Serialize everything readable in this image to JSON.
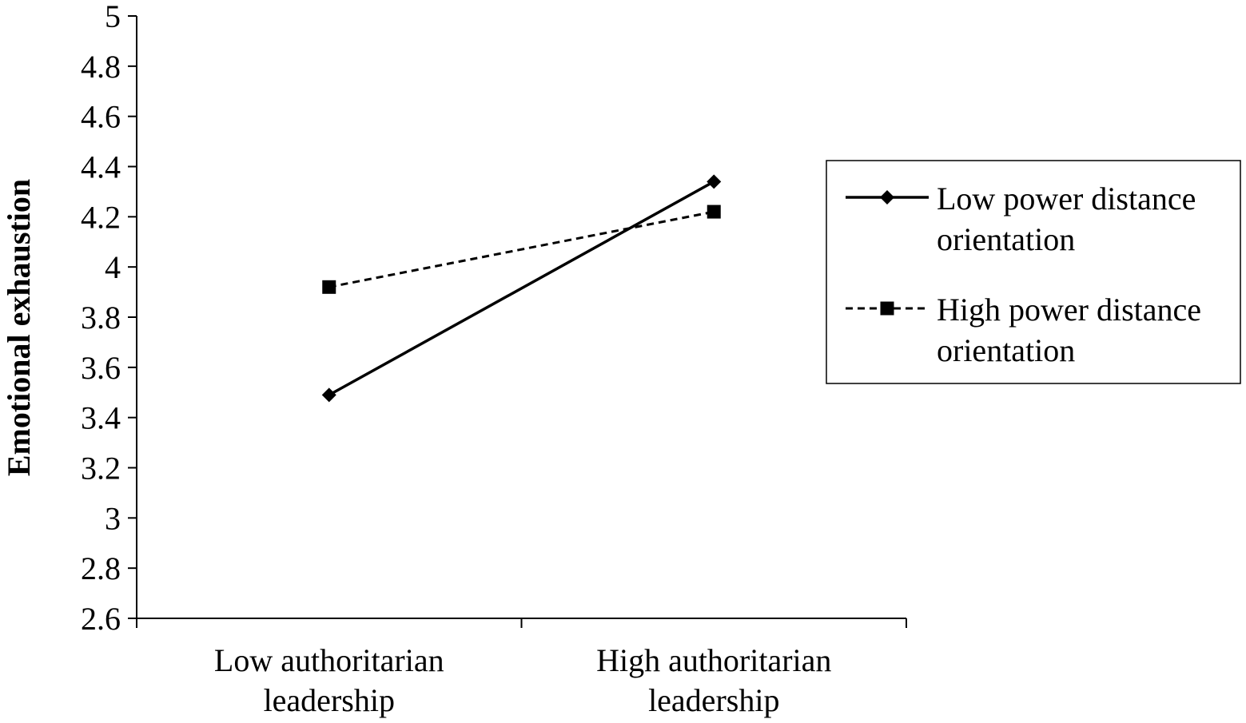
{
  "chart_data": {
    "type": "line",
    "title": "",
    "xlabel": "",
    "ylabel": "Emotional exhaustion",
    "categories": [
      [
        "Low authoritarian",
        "leadership"
      ],
      [
        "High authoritarian",
        "leadership"
      ]
    ],
    "ylim": [
      2.6,
      5
    ],
    "yticks": [
      "2.6",
      "2.8",
      "3",
      "3.2",
      "3.4",
      "3.6",
      "3.8",
      "4",
      "4.2",
      "4.4",
      "4.6",
      "4.8",
      "5"
    ],
    "grid": false,
    "legend_position": "right",
    "series": [
      {
        "name": [
          "Low power distance",
          "orientation"
        ],
        "values": [
          3.49,
          4.34
        ],
        "line_style": "solid",
        "marker": "diamond",
        "color": "#000000"
      },
      {
        "name": [
          "High power distance",
          "orientation"
        ],
        "values": [
          3.92,
          4.22
        ],
        "line_style": "dashed",
        "marker": "square",
        "color": "#000000"
      }
    ]
  }
}
